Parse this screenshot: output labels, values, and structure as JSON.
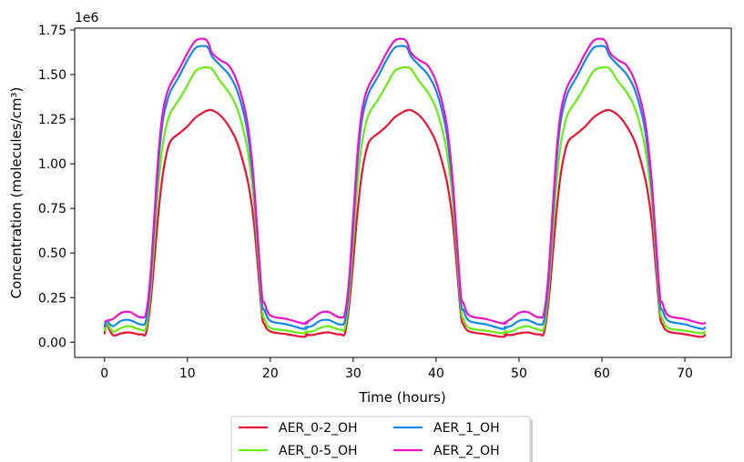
{
  "chart_data": {
    "type": "line",
    "xlabel": "Time (hours)",
    "ylabel": "Concentration (molecules/cm³)",
    "offset_label": "1e6",
    "xlim": [
      -3.6,
      75.6
    ],
    "ylim": [
      -0.085,
      1.76
    ],
    "x_ticks": [
      0,
      10,
      20,
      30,
      40,
      50,
      60,
      70
    ],
    "x_tick_labels": [
      "0",
      "10",
      "20",
      "30",
      "40",
      "50",
      "60",
      "70"
    ],
    "y_ticks": [
      0,
      0.25,
      0.5,
      0.75,
      1.0,
      1.25,
      1.5,
      1.75
    ],
    "y_tick_labels": [
      "0.00",
      "0.25",
      "0.50",
      "0.75",
      "1.00",
      "1.25",
      "1.50",
      "1.75"
    ],
    "grid": false,
    "legend_position": "below",
    "legend_columns": 2,
    "profile_hours": [
      0,
      0.25,
      1,
      2,
      3,
      4,
      4.5,
      5,
      5.5,
      6,
      6.5,
      7,
      7.5,
      8,
      9,
      10,
      11,
      12,
      12.5,
      13,
      14,
      15,
      16,
      17,
      17.5,
      18,
      18.5,
      19,
      19.3,
      20,
      22,
      24,
      24.5
    ],
    "series": [
      {
        "name": "AER_0-2_OH",
        "color": "#ee1133",
        "initial_spike": 0.1,
        "daily_profile": [
          0.045,
          0.045,
          0.04,
          0.05,
          0.055,
          0.045,
          0.045,
          0.05,
          0.2,
          0.45,
          0.72,
          0.93,
          1.06,
          1.13,
          1.17,
          1.21,
          1.26,
          1.29,
          1.3,
          1.3,
          1.27,
          1.21,
          1.12,
          0.96,
          0.85,
          0.68,
          0.42,
          0.15,
          0.1,
          0.06,
          0.045,
          0.03,
          0.045
        ]
      },
      {
        "name": "AER_0-5_OH",
        "color": "#66ee11",
        "initial_spike": 0.11,
        "daily_profile": [
          0.06,
          0.06,
          0.06,
          0.08,
          0.09,
          0.075,
          0.07,
          0.08,
          0.26,
          0.56,
          0.88,
          1.1,
          1.22,
          1.29,
          1.36,
          1.44,
          1.52,
          1.54,
          1.54,
          1.53,
          1.46,
          1.4,
          1.31,
          1.14,
          1.0,
          0.8,
          0.5,
          0.19,
          0.13,
          0.08,
          0.065,
          0.05,
          0.06
        ]
      },
      {
        "name": "AER_1_OH",
        "color": "#1188ee",
        "initial_spike": 0.12,
        "daily_profile": [
          0.085,
          0.085,
          0.09,
          0.12,
          0.125,
          0.105,
          0.1,
          0.12,
          0.31,
          0.65,
          1.0,
          1.23,
          1.34,
          1.41,
          1.49,
          1.58,
          1.65,
          1.66,
          1.65,
          1.6,
          1.55,
          1.5,
          1.41,
          1.24,
          1.09,
          0.87,
          0.55,
          0.22,
          0.18,
          0.12,
          0.1,
          0.075,
          0.085
        ]
      },
      {
        "name": "AER_2_OH",
        "color": "#ee11cc",
        "initial_spike": 0.12,
        "daily_profile": [
          0.11,
          0.11,
          0.13,
          0.165,
          0.17,
          0.145,
          0.14,
          0.16,
          0.35,
          0.7,
          1.05,
          1.28,
          1.39,
          1.45,
          1.53,
          1.62,
          1.69,
          1.7,
          1.68,
          1.62,
          1.58,
          1.55,
          1.46,
          1.29,
          1.14,
          0.91,
          0.58,
          0.26,
          0.22,
          0.15,
          0.13,
          0.105,
          0.11
        ]
      }
    ]
  }
}
